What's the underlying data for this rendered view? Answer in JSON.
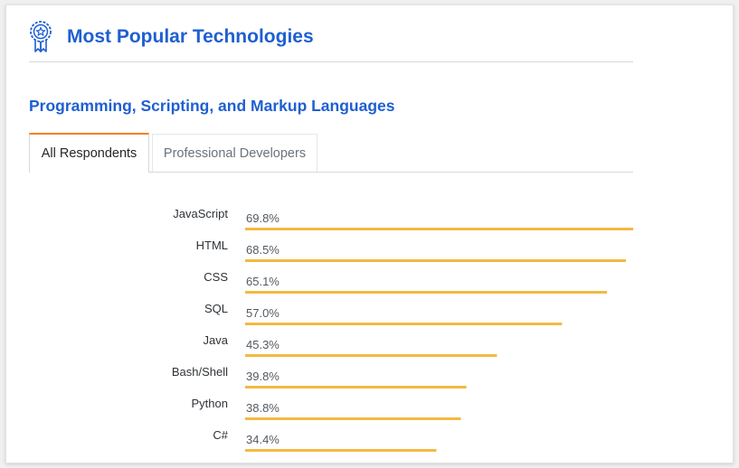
{
  "header": {
    "title": "Most Popular Technologies",
    "icon": "award-ribbon-icon"
  },
  "section": {
    "title": "Programming, Scripting, and Markup Languages"
  },
  "tabs": [
    {
      "label": "All Respondents",
      "active": true
    },
    {
      "label": "Professional Developers",
      "active": false
    }
  ],
  "colors": {
    "accent": "#1f5fd1",
    "bar": "#f4b942",
    "tab_active": "#f48024"
  },
  "chart_data": {
    "type": "bar",
    "orientation": "horizontal",
    "categories": [
      "JavaScript",
      "HTML",
      "CSS",
      "SQL",
      "Java",
      "Bash/Shell",
      "Python",
      "C#"
    ],
    "values": [
      69.8,
      68.5,
      65.1,
      57.0,
      45.3,
      39.8,
      38.8,
      34.4
    ],
    "value_labels": [
      "69.8%",
      "68.5%",
      "65.1%",
      "57.0%",
      "45.3%",
      "39.8%",
      "38.8%",
      "34.4%"
    ],
    "unit": "%",
    "xlim": [
      0,
      69.8
    ],
    "grid": false,
    "legend": "none"
  }
}
